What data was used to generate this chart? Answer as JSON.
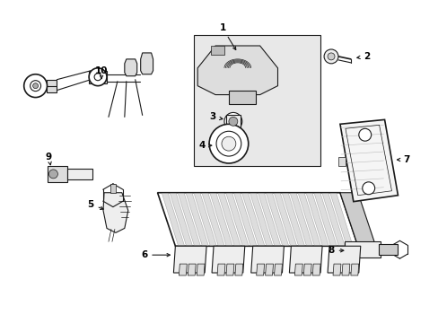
{
  "background_color": "#ffffff",
  "fig_width": 4.89,
  "fig_height": 3.6,
  "dpi": 100,
  "line_color": "#1a1a1a",
  "label_fontsize": 7.5,
  "arrow_color": "#1a1a1a",
  "box_fill": "#e8e8e8",
  "component_fill": "#f0f0f0",
  "dark_fill": "#888888"
}
